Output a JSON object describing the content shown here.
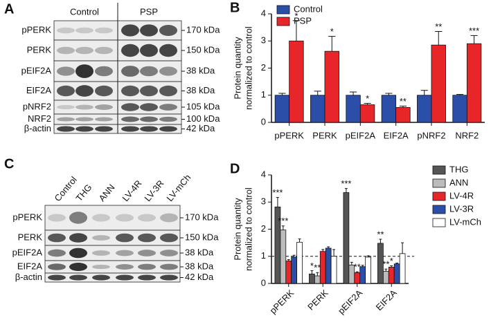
{
  "blots": [
    {
      "letter": "A",
      "columns": [
        "Control",
        "PSP"
      ],
      "rows": [
        {
          "label": "pPERK",
          "size": "170 kDa"
        },
        {
          "label": "PERK",
          "size": "150 kDa"
        },
        {
          "label": "pEIF2A",
          "size": "38 kDa"
        },
        {
          "label": "EIF2A",
          "size": "38 kDa"
        },
        {
          "label": "pNRF2",
          "size": "105 kDa"
        },
        {
          "label": "NRF2",
          "size": "100 kDa"
        },
        {
          "label": "β-actin",
          "size": "42 kDa"
        }
      ]
    },
    {
      "letter": "C",
      "columns": [
        "Control",
        "THG",
        "ANN",
        "LV-4R",
        "LV-3R",
        "LV-mCh"
      ],
      "rows": [
        {
          "label": "pPERK",
          "size": "170 kDa"
        },
        {
          "label": "PERK",
          "size": "150 kDa"
        },
        {
          "label": "pEIF2A",
          "size": "38 kDa"
        },
        {
          "label": "EIF2A",
          "size": "38 kDa"
        },
        {
          "label": "β-actin",
          "size": "42 kDa"
        }
      ]
    }
  ],
  "chart_data": [
    {
      "type": "bar",
      "label": "B",
      "ylabel": [
        "Protein quantity",
        "normalized to control"
      ],
      "categories": [
        "pPERK",
        "PERK",
        "pEIF2A",
        "EIF2A",
        "pNRF2",
        "NRF2"
      ],
      "series": [
        {
          "name": "Control",
          "color": "#2b4fa8",
          "values": [
            1.0,
            1.0,
            1.0,
            1.0,
            1.0,
            1.0
          ],
          "errors": [
            0.07,
            0.15,
            0.12,
            0.07,
            0.18,
            0.03
          ],
          "annotations": [
            null,
            null,
            null,
            null,
            null,
            null
          ]
        },
        {
          "name": "PSP",
          "color": "#e8262a",
          "values": [
            3.0,
            2.62,
            0.65,
            0.55,
            2.85,
            2.9
          ],
          "errors": [
            0.75,
            0.55,
            0.05,
            0.05,
            0.5,
            0.3
          ],
          "annotations": [
            "*",
            "*",
            "*",
            "**",
            "**",
            "***"
          ]
        }
      ],
      "ylim": [
        0,
        4
      ],
      "yticks": [
        0,
        1,
        2,
        3,
        4
      ],
      "legend": "upper left"
    },
    {
      "type": "bar",
      "label": "D",
      "ylabel": [
        "Protein quantity",
        "normalized to control"
      ],
      "categories": [
        "pPERK",
        "PERK",
        "pEIF2A",
        "EIF2A"
      ],
      "series": [
        {
          "name": "THG",
          "color": "#555555",
          "values": [
            2.82,
            0.35,
            3.35,
            1.48
          ],
          "errors": [
            0.35,
            0.12,
            0.15,
            0.15
          ],
          "annotations": [
            "***",
            "*",
            "***",
            "**"
          ]
        },
        {
          "name": "ANN",
          "color": "#bbbbbb",
          "values": [
            1.97,
            0.28,
            0.68,
            0.45
          ],
          "errors": [
            0.15,
            0.12,
            0.1,
            0.08
          ],
          "annotations": [
            "***",
            "**",
            null,
            "**"
          ]
        },
        {
          "name": "LV-4R",
          "color": "#e8262a",
          "values": [
            0.83,
            1.18,
            0.4,
            0.6
          ],
          "errors": [
            0.05,
            0.07,
            0.03,
            0.05
          ],
          "annotations": [
            null,
            null,
            "**",
            "*"
          ]
        },
        {
          "name": "LV-3R",
          "color": "#2b4fa8",
          "values": [
            0.97,
            1.3,
            0.62,
            0.72
          ],
          "errors": [
            0.07,
            0.05,
            0.05,
            0.03
          ],
          "annotations": [
            null,
            null,
            null,
            null
          ]
        },
        {
          "name": "LV-mCh",
          "color": "#ffffff",
          "values": [
            1.52,
            1.0,
            0.97,
            1.1
          ],
          "errors": [
            0.12,
            0.25,
            0.05,
            0.4
          ],
          "annotations": [
            null,
            null,
            null,
            null
          ]
        }
      ],
      "ylim": [
        0,
        4
      ],
      "yticks": [
        0,
        1,
        2,
        3,
        4
      ],
      "reference_line": 1,
      "legend": "right"
    }
  ]
}
